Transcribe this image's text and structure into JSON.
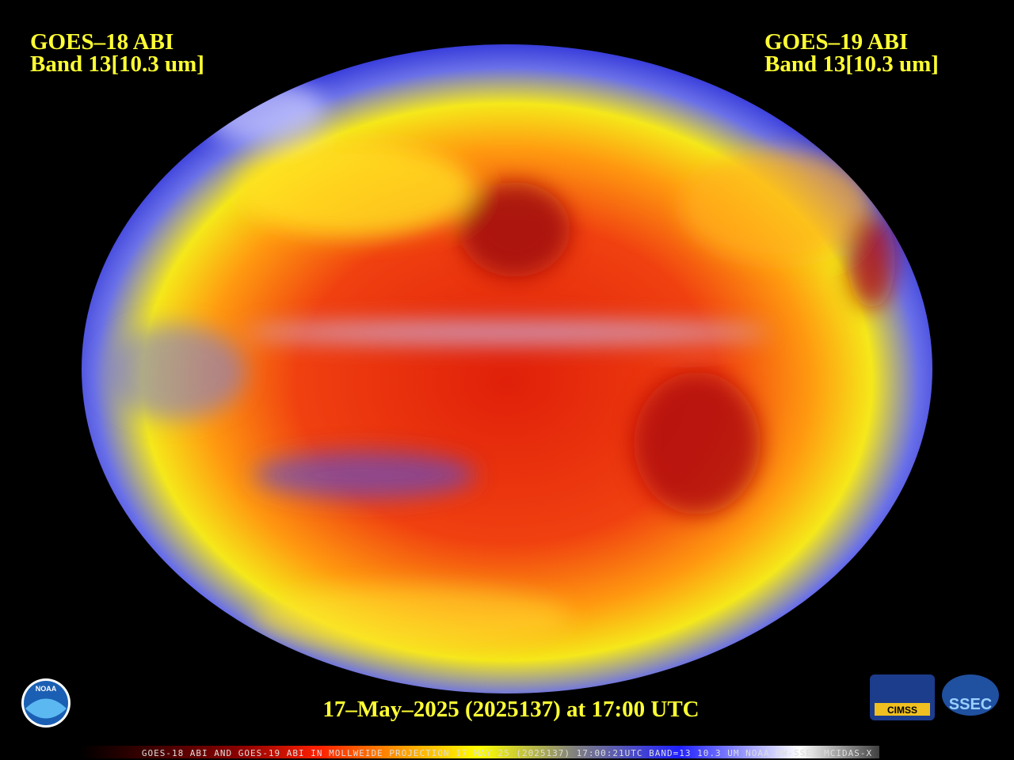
{
  "header": {
    "left": {
      "title": "GOES–18 ABI",
      "band": "Band 13[10.3 um]"
    },
    "right": {
      "title": "GOES–19 ABI",
      "band": "Band 13[10.3 um]"
    }
  },
  "timestamp": "17–May–2025 (2025137) at 17:00 UTC",
  "footer": "GOES-18 ABI AND GOES-19 ABI IN MOLLWEIDE PROJECTION 17 MAY 25 (2025137) 17:00:21UTC BAND=13 10.3 UM NOAA UW-SSEC MCIDAS-X",
  "logos": {
    "noaa": "NOAA",
    "cimss": "CIMSS",
    "ssec": "SSEC"
  }
}
